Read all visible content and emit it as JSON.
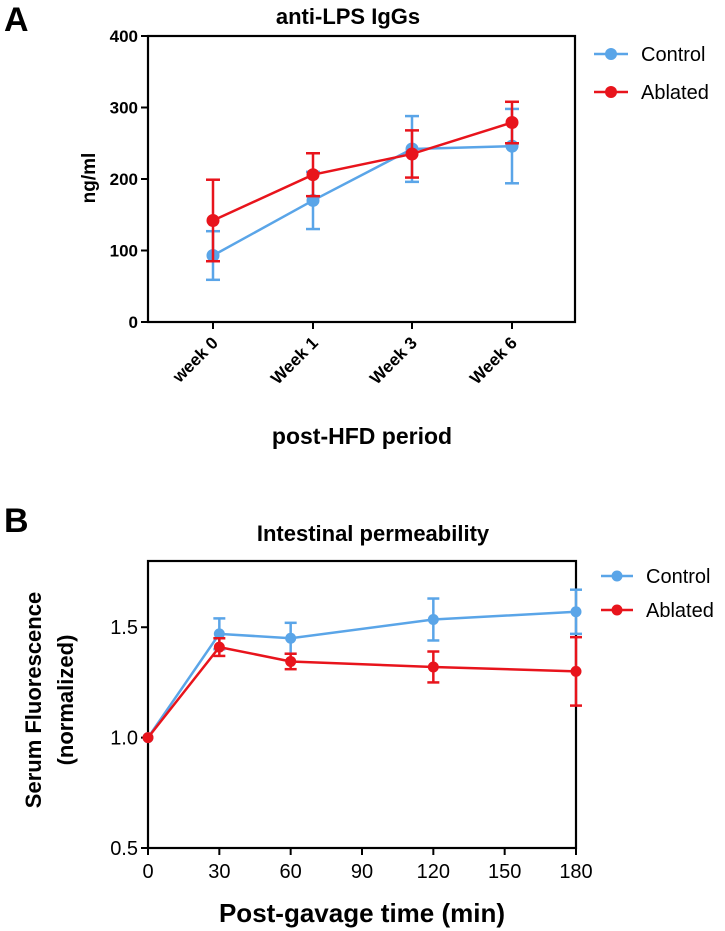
{
  "panels": [
    {
      "letter": "A",
      "chart_data": {
        "type": "line",
        "title": "anti-LPS IgGs",
        "xlabel": "post-HFD period",
        "ylabel": "ng/ml",
        "categories": [
          "week 0",
          "Week 1",
          "Week 3",
          "Week 6"
        ],
        "ylim": [
          0,
          400
        ],
        "yticks": [
          0,
          100,
          200,
          300,
          400
        ],
        "ytick_labels": [
          "0",
          "100",
          "200",
          "300",
          "400"
        ],
        "legend_position": "top-right",
        "series": [
          {
            "name": "Control",
            "color": "#5aa5e8",
            "values": [
              93,
              170,
              242,
              246
            ],
            "errors": [
              34,
              40,
              46,
              52
            ]
          },
          {
            "name": "Ablated",
            "color": "#e8141c",
            "values": [
              142,
              206,
              235,
              279
            ],
            "errors": [
              57,
              30,
              33,
              29
            ]
          }
        ]
      }
    },
    {
      "letter": "B",
      "chart_data": {
        "type": "line",
        "title": "Intestinal permeability",
        "xlabel": "Post-gavage time (min)",
        "ylabel_line1": "Serum Fluorescence",
        "ylabel_line2": "(normalized)",
        "x": [
          0,
          30,
          60,
          120,
          180
        ],
        "xlim": [
          0,
          180
        ],
        "xticks": [
          0,
          30,
          60,
          90,
          120,
          150,
          180
        ],
        "xtick_labels": [
          "0",
          "30",
          "60",
          "90",
          "120",
          "150",
          "180"
        ],
        "ylim": [
          0.5,
          1.8
        ],
        "yticks": [
          0.5,
          1.0,
          1.5
        ],
        "ytick_labels": [
          "0.5",
          "1.0",
          "1.5"
        ],
        "legend_position": "top-right",
        "series": [
          {
            "name": "Control",
            "color": "#5aa5e8",
            "values": [
              1.0,
              1.47,
              1.45,
              1.535,
              1.57
            ],
            "errors": [
              0,
              0.07,
              0.07,
              0.095,
              0.1
            ]
          },
          {
            "name": "Ablated",
            "color": "#e8141c",
            "values": [
              1.0,
              1.41,
              1.345,
              1.32,
              1.3
            ],
            "errors": [
              0,
              0.04,
              0.035,
              0.07,
              0.155
            ]
          }
        ]
      }
    }
  ]
}
